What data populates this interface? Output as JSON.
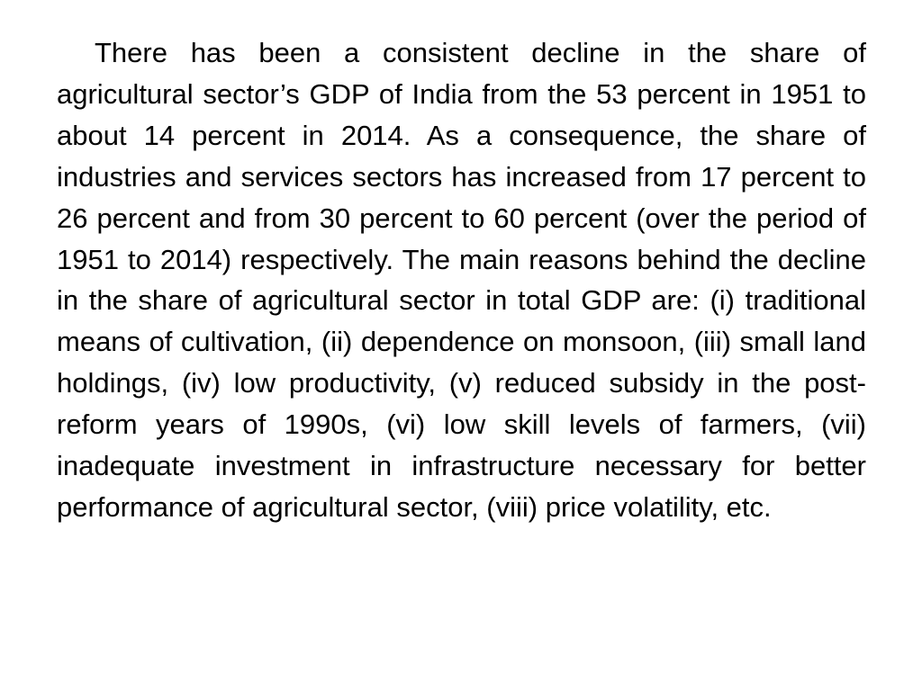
{
  "slide": {
    "body_text": "There has been a consistent decline in the share of agricultural sector’s GDP of India from the 53 percent in 1951 to about 14 percent in 2014. As a consequence, the share of industries and services sectors has increased from 17 percent to 26 percent and from 30 percent to 60 percent (over the period of 1951 to 2014) respectively. The main reasons behind the decline in the share of agricultural sector in total GDP are: (i) traditional means of cultivation, (ii) dependence on monsoon, (iii) small land holdings, (iv) low productivity, (v) reduced subsidy in the post-reform years of 1990s, (vi) low skill levels of farmers, (vii) inadequate investment in infrastructure necessary for better performance of agricultural sector, (viii) price volatility, etc."
  }
}
